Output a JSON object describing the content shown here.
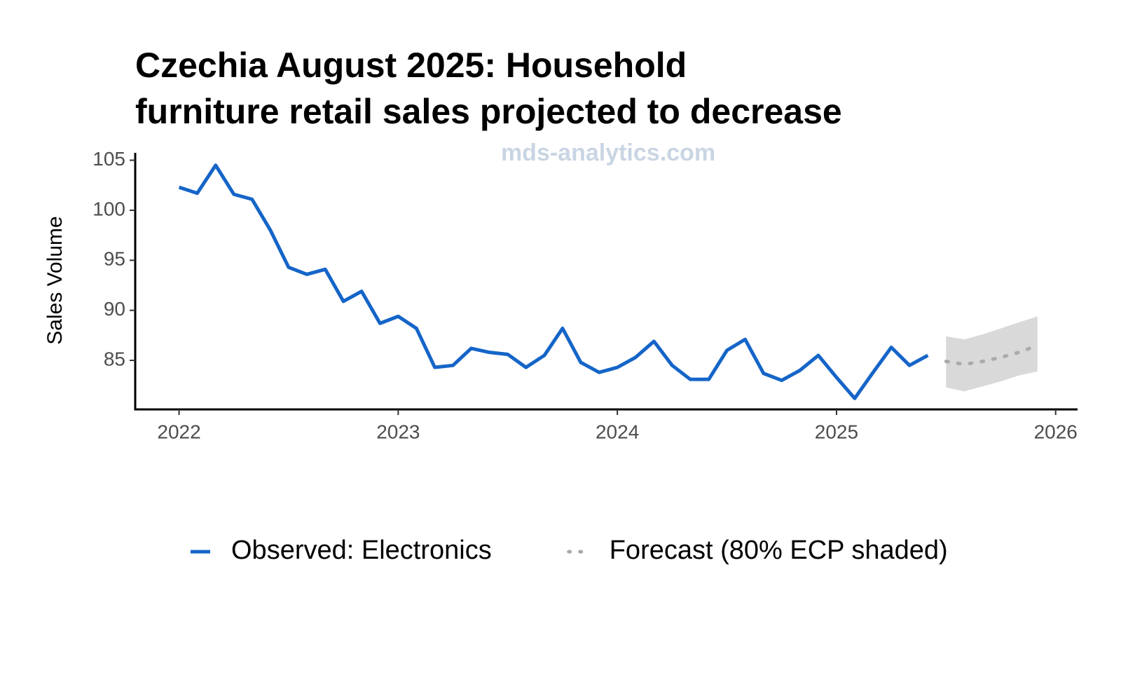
{
  "chart_data": {
    "type": "line",
    "title": [
      "Czechia August 2025: Household",
      "furniture retail sales projected to decrease"
    ],
    "watermark": "mds-analytics.com",
    "ylabel": "Sales Volume",
    "xlim": [
      2021.8,
      2026.1
    ],
    "xticks": [
      2022,
      2023,
      2024,
      2025,
      2026
    ],
    "ylim": [
      80.1,
      105.6
    ],
    "yticks": [
      85,
      90,
      95,
      100,
      105
    ],
    "legend": "bottom",
    "series": [
      {
        "name": "Observed: Electronics",
        "color": "#1565c8",
        "style": "solid",
        "x": [
          2022,
          2022.083,
          2022.167,
          2022.25,
          2022.333,
          2022.417,
          2022.5,
          2022.583,
          2022.667,
          2022.75,
          2022.833,
          2022.917,
          2023,
          2023.083,
          2023.167,
          2023.25,
          2023.333,
          2023.417,
          2023.5,
          2023.583,
          2023.667,
          2023.75,
          2023.833,
          2023.917,
          2024,
          2024.083,
          2024.167,
          2024.25,
          2024.333,
          2024.417,
          2024.5,
          2024.583,
          2024.667,
          2024.75,
          2024.833,
          2024.917,
          2025,
          2025.083,
          2025.167,
          2025.25,
          2025.333,
          2025.417
        ],
        "values": [
          102.3,
          101.7,
          104.5,
          101.6,
          101.1,
          98.0,
          94.3,
          93.6,
          94.1,
          90.9,
          91.9,
          88.7,
          89.4,
          88.2,
          84.3,
          84.5,
          86.2,
          85.8,
          85.6,
          84.3,
          85.5,
          88.2,
          84.8,
          83.8,
          84.3,
          85.3,
          86.9,
          84.5,
          83.1,
          83.1,
          86.0,
          87.1,
          83.7,
          83.0,
          84.0,
          85.5,
          83.3,
          81.2,
          83.8,
          86.3,
          84.5,
          85.5
        ]
      },
      {
        "name": "Forecast (80% ECP shaded)",
        "color": "#aaaaaa",
        "band_color": "#d9d9d9",
        "style": "dotted",
        "x": [
          2025.5,
          2025.583,
          2025.667,
          2025.75,
          2025.833,
          2025.917
        ],
        "values": [
          84.9,
          84.6,
          84.9,
          85.3,
          85.8,
          86.5
        ],
        "lower": [
          82.3,
          81.9,
          82.4,
          82.9,
          83.5,
          83.9
        ],
        "upper": [
          87.4,
          87.1,
          87.6,
          88.2,
          88.8,
          89.4
        ]
      }
    ]
  }
}
